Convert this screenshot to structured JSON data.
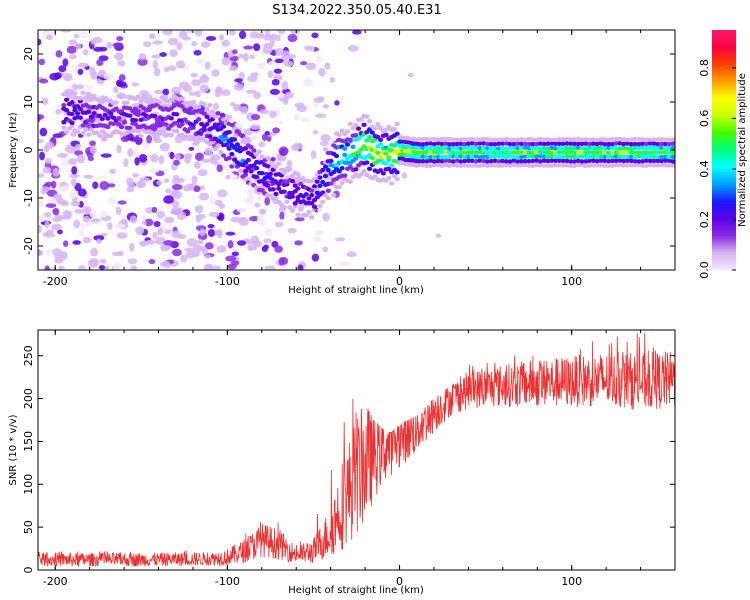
{
  "figure": {
    "title": "S134.2022.350.05.40.E31"
  },
  "chart_data": [
    {
      "type": "heatmap",
      "title": "",
      "xlabel": "Height of straight line (km)",
      "ylabel": "Frequency (Hz)",
      "xlim": [
        -210,
        160
      ],
      "ylim": [
        -25,
        25
      ],
      "xticks": [
        "-200",
        "-100",
        "0",
        "100"
      ],
      "xtick_values": [
        -200,
        -100,
        0,
        100
      ],
      "yticks": [
        "-20",
        "-10",
        "0",
        "10",
        "20"
      ],
      "ytick_values": [
        -20,
        -10,
        0,
        10,
        20
      ],
      "colorbar": {
        "label": "Normalized spectral amplitude",
        "range": [
          0,
          0.95
        ],
        "ticks": [
          "0.0",
          "0.2",
          "0.4",
          "0.6",
          "0.8"
        ],
        "tick_values": [
          0.0,
          0.2,
          0.4,
          0.6,
          0.8
        ],
        "colors": [
          "#f4e8fa",
          "#d6b4f2",
          "#8a2be2",
          "#5a00e8",
          "#1a1aff",
          "#00a0ff",
          "#00ffff",
          "#00ff80",
          "#40ff00",
          "#c8ff00",
          "#ffff00",
          "#ffa000",
          "#ff4000",
          "#ff0040",
          "#ff1a6e"
        ]
      },
      "ridge": {
        "x": [
          -190,
          -170,
          -150,
          -130,
          -120,
          -110,
          -100,
          -90,
          -80,
          -70,
          -60,
          -50,
          -45,
          -40,
          -35,
          -30,
          -25,
          -20,
          -15,
          -10,
          -5,
          0,
          10,
          30,
          60,
          100,
          130,
          160
        ],
        "y": [
          8,
          7,
          7,
          7,
          6,
          5,
          2,
          -2,
          -5,
          -7,
          -9,
          -10,
          -7,
          -4,
          -2,
          -1,
          0,
          1,
          0,
          -1,
          -1,
          0,
          -0.5,
          -0.5,
          -0.5,
          -0.5,
          -0.5,
          -0.5
        ],
        "amplitude": [
          0.25,
          0.2,
          0.2,
          0.2,
          0.2,
          0.25,
          0.35,
          0.3,
          0.3,
          0.25,
          0.25,
          0.25,
          0.3,
          0.35,
          0.4,
          0.45,
          0.5,
          0.6,
          0.7,
          0.6,
          0.6,
          0.7,
          0.6,
          0.55,
          0.55,
          0.6,
          0.6,
          0.55
        ]
      }
    },
    {
      "type": "line",
      "title": "",
      "xlabel": "Height of straight line (km)",
      "ylabel": "SNR (10 * v/v)",
      "xlim": [
        -210,
        160
      ],
      "ylim": [
        0,
        280
      ],
      "xticks": [
        "-200",
        "-100",
        "0",
        "100"
      ],
      "xtick_values": [
        -200,
        -100,
        0,
        100
      ],
      "yticks": [
        "0",
        "50",
        "100",
        "150",
        "200",
        "250"
      ],
      "ytick_values": [
        0,
        50,
        100,
        150,
        200,
        250
      ],
      "color": "#ee3030",
      "envelope": {
        "x": [
          -210,
          -150,
          -110,
          -100,
          -90,
          -80,
          -70,
          -60,
          -50,
          -40,
          -35,
          -30,
          -25,
          -20,
          -15,
          -10,
          -5,
          0,
          10,
          20,
          30,
          40,
          60,
          80,
          100,
          120,
          140,
          160
        ],
        "mean": [
          12,
          12,
          13,
          15,
          22,
          35,
          30,
          18,
          22,
          45,
          70,
          90,
          110,
          125,
          135,
          140,
          145,
          150,
          165,
          185,
          200,
          210,
          215,
          218,
          220,
          222,
          220,
          222
        ],
        "spread": [
          8,
          8,
          8,
          10,
          14,
          20,
          18,
          10,
          15,
          30,
          50,
          60,
          70,
          70,
          55,
          40,
          35,
          30,
          30,
          25,
          20,
          22,
          25,
          28,
          30,
          32,
          34,
          34
        ],
        "max": [
          22,
          22,
          24,
          30,
          45,
          65,
          55,
          30,
          50,
          120,
          200,
          225,
          210,
          195,
          175,
          165,
          160,
          170,
          180,
          200,
          215,
          240,
          250,
          255,
          262,
          270,
          278,
          270
        ]
      }
    }
  ]
}
